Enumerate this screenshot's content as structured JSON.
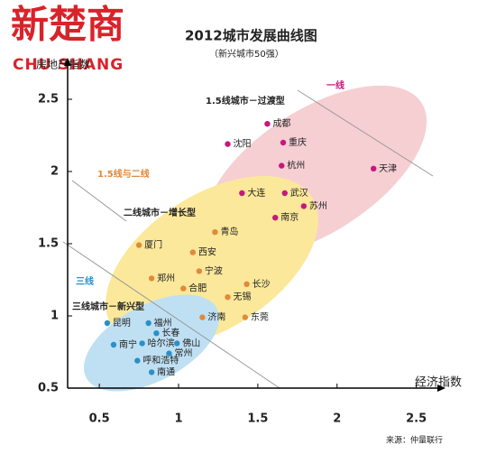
{
  "logo": {
    "chinese": "新楚商",
    "latin": "CHU SHANG"
  },
  "chart_data": {
    "type": "scatter",
    "title": "2012城市发展曲线图",
    "subtitle": "（新兴城市50强）",
    "x_label": "经济指数",
    "y_label": "房地产指数",
    "source": "来源：仲量联行",
    "annotations": [
      "一线",
      "1.5线与二线",
      "三线"
    ],
    "xlim": [
      0.3,
      2.65
    ],
    "ylim": [
      0.5,
      2.75
    ],
    "xticks": [
      0.5,
      1,
      1.5,
      2,
      2.5
    ],
    "yticks": [
      0.5,
      1,
      1.5,
      2,
      2.5
    ],
    "series": [
      {
        "name": "1.5线城市－过渡型",
        "color": "#c8177e",
        "labels": [
          "成都",
          "沈阳",
          "重庆",
          "杭州",
          "天津",
          "大连",
          "武汉",
          "苏州",
          "南京"
        ],
        "x": [
          1.56,
          1.31,
          1.66,
          1.65,
          2.23,
          1.4,
          1.67,
          1.79,
          1.61
        ],
        "values": [
          2.33,
          2.19,
          2.2,
          2.04,
          2.02,
          1.85,
          1.85,
          1.76,
          1.68
        ]
      },
      {
        "name": "二线城市－增长型",
        "color": "#e2893a",
        "labels": [
          "青岛",
          "厦门",
          "西安",
          "宁波",
          "郑州",
          "长沙",
          "合肥",
          "无锡",
          "济南",
          "东莞"
        ],
        "x": [
          1.23,
          0.75,
          1.09,
          1.13,
          0.83,
          1.43,
          1.03,
          1.31,
          1.15,
          1.42
        ],
        "values": [
          1.58,
          1.49,
          1.44,
          1.31,
          1.26,
          1.22,
          1.19,
          1.13,
          0.99,
          0.99
        ]
      },
      {
        "name": "三线城市－新兴型",
        "color": "#2b8fc9",
        "labels": [
          "昆明",
          "福州",
          "长春",
          "南宁",
          "哈尔滨",
          "佛山",
          "常州",
          "呼和浩特",
          "南通"
        ],
        "x": [
          0.55,
          0.81,
          0.86,
          0.59,
          0.77,
          0.99,
          0.94,
          0.74,
          0.83
        ],
        "values": [
          0.95,
          0.95,
          0.88,
          0.8,
          0.81,
          0.81,
          0.74,
          0.69,
          0.61
        ]
      }
    ]
  }
}
